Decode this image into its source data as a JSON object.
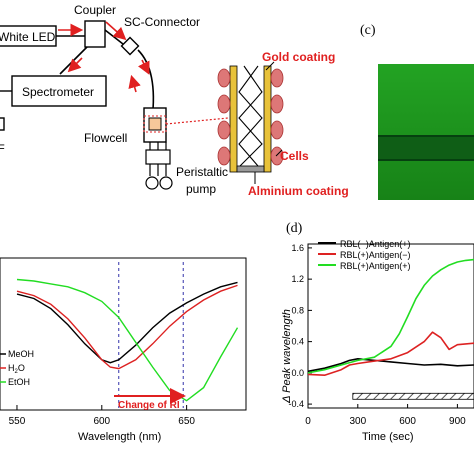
{
  "setup": {
    "white_led": "White LED",
    "coupler": "Coupler",
    "sc_connector": "SC-Connector",
    "spectrometer": "Spectrometer",
    "flowcell": "Flowcell",
    "pump_line1": "Peristaltic",
    "pump_line2": "pump",
    "gold_coating": "Gold coating",
    "cells": "Cells",
    "aluminium_coating": "Alminium coating",
    "left_edge_mark": "F"
  },
  "panel_c": {
    "label": "(c)",
    "colors": {
      "background": "#1e8f1e",
      "fiber": "#0a5a12"
    }
  },
  "panel_d_label": "(d)",
  "colors": {
    "red_label": "#e02020",
    "black": "#000000",
    "red": "#dd2222",
    "green": "#22dd22",
    "blue_dashed": "#3333aa"
  },
  "chart_data": [
    {
      "type": "line",
      "xlabel": "Wavelength (nm)",
      "ylabel": "",
      "xlim": [
        550,
        680
      ],
      "x_ticks": [
        "550",
        "600",
        "650"
      ],
      "legend": [
        "MeOH",
        "H2O",
        "EtOH"
      ],
      "legend_placement": "bottom-left",
      "annotation": "Change of RI",
      "series": [
        {
          "name": "MeOH",
          "color": "#000000",
          "x": [
            550,
            560,
            570,
            580,
            590,
            600,
            605,
            610,
            620,
            630,
            640,
            650,
            660,
            670,
            680
          ],
          "y": [
            0.78,
            0.75,
            0.68,
            0.57,
            0.44,
            0.33,
            0.31,
            0.33,
            0.43,
            0.55,
            0.65,
            0.72,
            0.78,
            0.83,
            0.86
          ]
        },
        {
          "name": "H2O",
          "color": "#dd2222",
          "x": [
            550,
            560,
            570,
            580,
            590,
            600,
            605,
            610,
            620,
            630,
            640,
            650,
            660,
            670,
            680
          ],
          "y": [
            0.8,
            0.77,
            0.71,
            0.61,
            0.48,
            0.33,
            0.28,
            0.27,
            0.33,
            0.44,
            0.56,
            0.66,
            0.74,
            0.8,
            0.84
          ]
        },
        {
          "name": "EtOH",
          "color": "#22dd22",
          "x": [
            550,
            560,
            570,
            580,
            590,
            600,
            610,
            620,
            630,
            640,
            650,
            660,
            670,
            680
          ],
          "y": [
            0.88,
            0.87,
            0.85,
            0.83,
            0.79,
            0.73,
            0.62,
            0.45,
            0.28,
            0.12,
            0.05,
            0.14,
            0.35,
            0.55
          ]
        }
      ],
      "vlines": [
        610,
        648
      ]
    },
    {
      "type": "line",
      "xlabel": "Time (sec)",
      "ylabel": "Δ Peak wavelength",
      "xlim": [
        0,
        1000
      ],
      "ylim": [
        -0.45,
        1.65
      ],
      "x_ticks": [
        "0",
        "300",
        "600",
        "900"
      ],
      "y_ticks": [
        "1.6",
        "1.2",
        "0.8",
        "0.4",
        "0.0",
        "-0.4"
      ],
      "legend": [
        "RBL(−)Antigen(+)",
        "RBL(+)Antigen(−)",
        "RBL(+)Antigen(+)"
      ],
      "legend_placement": "top-left",
      "annotation_bar": {
        "x_start": 270,
        "x_end": 1000,
        "y": -0.3
      },
      "series": [
        {
          "name": "RBL(−)Antigen(+)",
          "color": "#000000",
          "x": [
            0,
            100,
            200,
            250,
            300,
            400,
            500,
            600,
            700,
            800,
            900,
            1000
          ],
          "y": [
            0.02,
            0.06,
            0.12,
            0.16,
            0.18,
            0.16,
            0.14,
            0.12,
            0.1,
            0.11,
            0.09,
            0.1
          ]
        },
        {
          "name": "RBL(+)Antigen(−)",
          "color": "#dd2222",
          "x": [
            0,
            100,
            200,
            250,
            300,
            400,
            500,
            600,
            700,
            750,
            800,
            850,
            900,
            1000
          ],
          "y": [
            -0.02,
            -0.03,
            0.04,
            0.1,
            0.12,
            0.15,
            0.18,
            0.26,
            0.4,
            0.52,
            0.45,
            0.3,
            0.36,
            0.38
          ]
        },
        {
          "name": "RBL(+)Antigen(+)",
          "color": "#22dd22",
          "x": [
            0,
            100,
            200,
            300,
            400,
            500,
            550,
            600,
            650,
            700,
            750,
            800,
            850,
            900,
            950,
            1000
          ],
          "y": [
            0.0,
            0.04,
            0.1,
            0.16,
            0.2,
            0.34,
            0.5,
            0.72,
            0.95,
            1.12,
            1.24,
            1.32,
            1.38,
            1.42,
            1.44,
            1.45
          ]
        }
      ]
    }
  ]
}
